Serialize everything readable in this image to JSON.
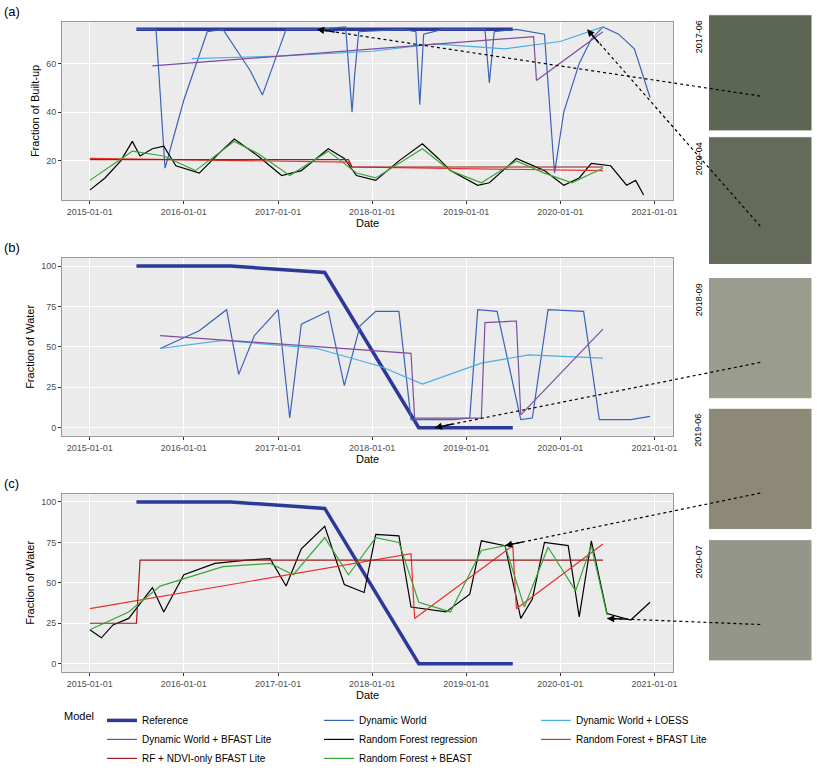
{
  "chart_data": [
    {
      "type": "line",
      "title": "(a)",
      "x_label": "Date",
      "y_label": "Fraction of Built-up",
      "xlim": [
        "2014-09-15",
        "2021-03-15"
      ],
      "xticks": [
        "2015-01-01",
        "2016-01-01",
        "2017-01-01",
        "2018-01-01",
        "2019-01-01",
        "2020-01-01",
        "2021-01-01"
      ],
      "ylim": [
        4,
        77
      ],
      "yticks": [
        20,
        40,
        60
      ],
      "grid": true,
      "image_dates": [
        {
          "label": "2017-06",
          "x": "2017-06-01",
          "y": 74
        },
        {
          "label": "2020-04",
          "x": "2020-04-15",
          "y": 74
        }
      ],
      "series": [
        {
          "name": "Reference",
          "color": "#2c3999",
          "line_style": "thick",
          "x": [
            "2015-07-01",
            "2019-07-01"
          ],
          "values": [
            74,
            74
          ]
        },
        {
          "name": "Dynamic World",
          "color": "#3a63b8",
          "line_style": "solid",
          "x": [
            "2015-07-01",
            "2015-09-15",
            "2015-10-20",
            "2016-01-01",
            "2016-04-01",
            "2016-06-01",
            "2016-09-15",
            "2016-11-01",
            "2017-02-01",
            "2017-06-01",
            "2017-09-20",
            "2017-10-15",
            "2017-10-25",
            "2017-11-10",
            "2018-05-01",
            "2018-06-20",
            "2018-07-05",
            "2018-07-20",
            "2018-10-01",
            "2019-03-15",
            "2019-04-01",
            "2019-04-20",
            "2019-07-15",
            "2019-09-01",
            "2019-11-01",
            "2019-12-10",
            "2020-01-15",
            "2020-03-15",
            "2020-05-01",
            "2020-06-15",
            "2020-08-15",
            "2020-10-15",
            "2020-12-15"
          ],
          "values": [
            74,
            74,
            17,
            45,
            73,
            74,
            57,
            47,
            74,
            74,
            75,
            40,
            55,
            73,
            74,
            73,
            43,
            72,
            74,
            74,
            52,
            73,
            74,
            73,
            72,
            15,
            40,
            60,
            70,
            75,
            72,
            66,
            46
          ]
        },
        {
          "name": "Dynamic World + LOESS",
          "color": "#4aaee0",
          "line_style": "solid",
          "x": [
            "2016-02-01",
            "2017-01-01",
            "2018-01-01",
            "2018-09-01",
            "2019-06-01",
            "2020-01-01",
            "2020-06-15"
          ],
          "values": [
            62,
            63,
            65,
            68,
            66,
            69,
            75
          ]
        },
        {
          "name": "Dynamic World + BFAST Lite",
          "color": "#7e4d9f",
          "line_style": "solid",
          "x": [
            "2015-09-01",
            "2019-09-20",
            "2019-10-01",
            "2020-06-15"
          ],
          "values": [
            59,
            71,
            53,
            73
          ]
        },
        {
          "name": "Random Forest regression",
          "color": "#000000",
          "line_style": "solid",
          "x": [
            "2015-01-01",
            "2015-03-01",
            "2015-05-01",
            "2015-06-15",
            "2015-07-15",
            "2015-09-01",
            "2015-10-15",
            "2015-12-01",
            "2016-03-01",
            "2016-05-15",
            "2016-07-15",
            "2016-10-15",
            "2017-01-15",
            "2017-04-01",
            "2017-07-15",
            "2017-09-15",
            "2017-11-01",
            "2018-01-15",
            "2018-04-15",
            "2018-07-15",
            "2018-09-15",
            "2018-11-01",
            "2019-02-15",
            "2019-04-01",
            "2019-07-15",
            "2019-09-15",
            "2019-11-01",
            "2020-01-15",
            "2020-03-15",
            "2020-05-01",
            "2020-07-15",
            "2020-09-15",
            "2020-10-20",
            "2020-11-20"
          ],
          "values": [
            8,
            13,
            20,
            28,
            22,
            25,
            26,
            18,
            15,
            23,
            29,
            22,
            14,
            16,
            25,
            21,
            14,
            12,
            20,
            27,
            21,
            16,
            10,
            11,
            21,
            18,
            16,
            10,
            13,
            19,
            18,
            10,
            12,
            6
          ]
        },
        {
          "name": "Random Forest + BFAST Lite",
          "color": "#e8312b",
          "line_style": "solid",
          "x": [
            "2015-01-01",
            "2017-10-01",
            "2017-10-15",
            "2020-06-15"
          ],
          "values": [
            21,
            19.5,
            17.5,
            16
          ]
        },
        {
          "name": "RF + NDVI-only BFAST Lite",
          "color": "#9c1b1b",
          "line_style": "solid",
          "x": [
            "2015-01-01",
            "2017-10-01",
            "2017-10-15",
            "2020-06-15"
          ],
          "values": [
            20.5,
            20.5,
            17.5,
            17.5
          ]
        },
        {
          "name": "Random Forest + BEAST",
          "color": "#3aa537",
          "line_style": "solid",
          "x": [
            "2015-01-01",
            "2015-06-15",
            "2015-10-15",
            "2016-02-15",
            "2016-07-15",
            "2016-10-15",
            "2017-02-15",
            "2017-07-15",
            "2017-11-01",
            "2018-01-15",
            "2018-07-15",
            "2018-11-01",
            "2019-03-01",
            "2019-07-15",
            "2019-11-01",
            "2020-02-15",
            "2020-06-15"
          ],
          "values": [
            12,
            24,
            22,
            16,
            28,
            23,
            14,
            24,
            15,
            13,
            25,
            16,
            11,
            20,
            15,
            11,
            17
          ]
        }
      ]
    },
    {
      "type": "line",
      "title": "(b)",
      "x_label": "Date",
      "y_label": "Fraction of Water",
      "xlim": [
        "2014-09-15",
        "2021-03-15"
      ],
      "xticks": [
        "2015-01-01",
        "2016-01-01",
        "2017-01-01",
        "2018-01-01",
        "2019-01-01",
        "2020-01-01",
        "2021-01-01"
      ],
      "ylim": [
        -5,
        105
      ],
      "yticks": [
        0,
        25,
        50,
        75,
        100
      ],
      "grid": true,
      "image_dates": [
        {
          "label": "2018-09",
          "x": "2018-09-01",
          "y": 0
        }
      ],
      "series": [
        {
          "name": "Reference",
          "color": "#2c3999",
          "line_style": "thick",
          "x": [
            "2015-07-01",
            "2016-07-01",
            "2017-07-01",
            "2018-07-01",
            "2019-07-01"
          ],
          "values": [
            100,
            100,
            96,
            0,
            0
          ]
        },
        {
          "name": "Dynamic World",
          "color": "#3a63b8",
          "line_style": "solid",
          "x": [
            "2015-10-01",
            "2016-03-01",
            "2016-06-15",
            "2016-08-01",
            "2016-10-01",
            "2017-01-01",
            "2017-02-15",
            "2017-04-01",
            "2017-07-15",
            "2017-09-15",
            "2017-11-15",
            "2018-01-15",
            "2018-04-15",
            "2018-06-01",
            "2018-08-15",
            "2018-11-15",
            "2019-01-15",
            "2019-02-15",
            "2019-05-01",
            "2019-08-01",
            "2019-09-15",
            "2019-11-15",
            "2020-04-01",
            "2020-06-01",
            "2020-10-01",
            "2020-12-15"
          ],
          "values": [
            49,
            60,
            73,
            33,
            57,
            73,
            6,
            64,
            72,
            26,
            63,
            72,
            72,
            5,
            5,
            5,
            6,
            73,
            72,
            5,
            6,
            73,
            72,
            5,
            5,
            7
          ]
        },
        {
          "name": "Dynamic World + LOESS",
          "color": "#4aaee0",
          "line_style": "solid",
          "x": [
            "2015-10-01",
            "2016-06-01",
            "2017-06-01",
            "2018-02-01",
            "2018-07-15",
            "2019-03-01",
            "2019-09-01",
            "2020-06-15"
          ],
          "values": [
            49,
            54,
            49,
            38,
            27,
            40,
            45,
            43
          ]
        },
        {
          "name": "Dynamic World + BFAST Lite",
          "color": "#7e4d9f",
          "line_style": "solid",
          "x": [
            "2015-10-01",
            "2018-06-01",
            "2018-06-15",
            "2019-03-01",
            "2019-03-15",
            "2019-07-15",
            "2019-08-01",
            "2020-06-15"
          ],
          "values": [
            57,
            46,
            6,
            6,
            65,
            66,
            8,
            61
          ]
        }
      ]
    },
    {
      "type": "line",
      "title": "(c)",
      "x_label": "Date",
      "y_label": "Fraction of Water",
      "xlim": [
        "2014-09-15",
        "2021-03-15"
      ],
      "xticks": [
        "2015-01-01",
        "2016-01-01",
        "2017-01-01",
        "2018-01-01",
        "2019-01-01",
        "2020-01-01",
        "2021-01-01"
      ],
      "ylim": [
        -5,
        105
      ],
      "yticks": [
        0,
        25,
        50,
        75,
        100
      ],
      "grid": true,
      "legend": "bottom",
      "legend_title": "Model",
      "image_dates": [
        {
          "label": "2019-06",
          "x": "2019-06-01",
          "y": 73
        },
        {
          "label": "2020-07",
          "x": "2020-07-01",
          "y": 28
        }
      ],
      "series": [
        {
          "name": "Reference",
          "color": "#2c3999",
          "line_style": "thick",
          "x": [
            "2015-07-01",
            "2016-07-01",
            "2017-07-01",
            "2018-07-01",
            "2019-07-01"
          ],
          "values": [
            100,
            100,
            96,
            0,
            0
          ]
        },
        {
          "name": "Random Forest regression",
          "color": "#000000",
          "line_style": "solid",
          "x": [
            "2015-01-01",
            "2015-02-15",
            "2015-04-01",
            "2015-06-01",
            "2015-09-01",
            "2015-10-15",
            "2016-01-01",
            "2016-05-01",
            "2016-09-01",
            "2016-12-01",
            "2017-02-01",
            "2017-04-01",
            "2017-07-01",
            "2017-09-15",
            "2017-12-01",
            "2018-01-15",
            "2018-04-15",
            "2018-06-01",
            "2018-10-15",
            "2019-01-15",
            "2019-03-01",
            "2019-06-01",
            "2019-08-01",
            "2019-09-15",
            "2019-11-01",
            "2020-02-01",
            "2020-03-15",
            "2020-05-01",
            "2020-07-01",
            "2020-10-01",
            "2020-12-15"
          ],
          "values": [
            21,
            16,
            24,
            28,
            47,
            32,
            55,
            62,
            64,
            65,
            48,
            71,
            85,
            49,
            44,
            80,
            79,
            35,
            32,
            43,
            76,
            73,
            28,
            40,
            75,
            73,
            29,
            76,
            31,
            27,
            38
          ]
        },
        {
          "name": "Random Forest + BFAST Lite",
          "color": "#e8312b",
          "line_style": "solid",
          "x": [
            "2015-01-01",
            "2018-06-01",
            "2018-06-15",
            "2019-07-01",
            "2019-07-15",
            "2020-06-15"
          ],
          "values": [
            34,
            68,
            28,
            73,
            34,
            74
          ]
        },
        {
          "name": "RF + NDVI-only BFAST Lite",
          "color": "#9c1b1b",
          "line_style": "solid",
          "x": [
            "2015-01-01",
            "2015-07-01",
            "2015-07-15",
            "2020-06-15"
          ],
          "values": [
            25,
            25,
            64,
            64
          ]
        },
        {
          "name": "Random Forest + BEAST",
          "color": "#3aa537",
          "line_style": "solid",
          "x": [
            "2015-01-01",
            "2015-06-01",
            "2015-10-01",
            "2016-06-01",
            "2016-12-01",
            "2017-03-01",
            "2017-07-01",
            "2017-10-01",
            "2018-01-15",
            "2018-04-15",
            "2018-07-01",
            "2018-11-01",
            "2019-03-01",
            "2019-06-01",
            "2019-08-15",
            "2019-11-15",
            "2020-03-01",
            "2020-05-01",
            "2020-07-01"
          ],
          "values": [
            21,
            32,
            48,
            60,
            62,
            55,
            78,
            55,
            78,
            75,
            38,
            32,
            70,
            73,
            35,
            72,
            45,
            73,
            30
          ]
        }
      ]
    }
  ]
}
